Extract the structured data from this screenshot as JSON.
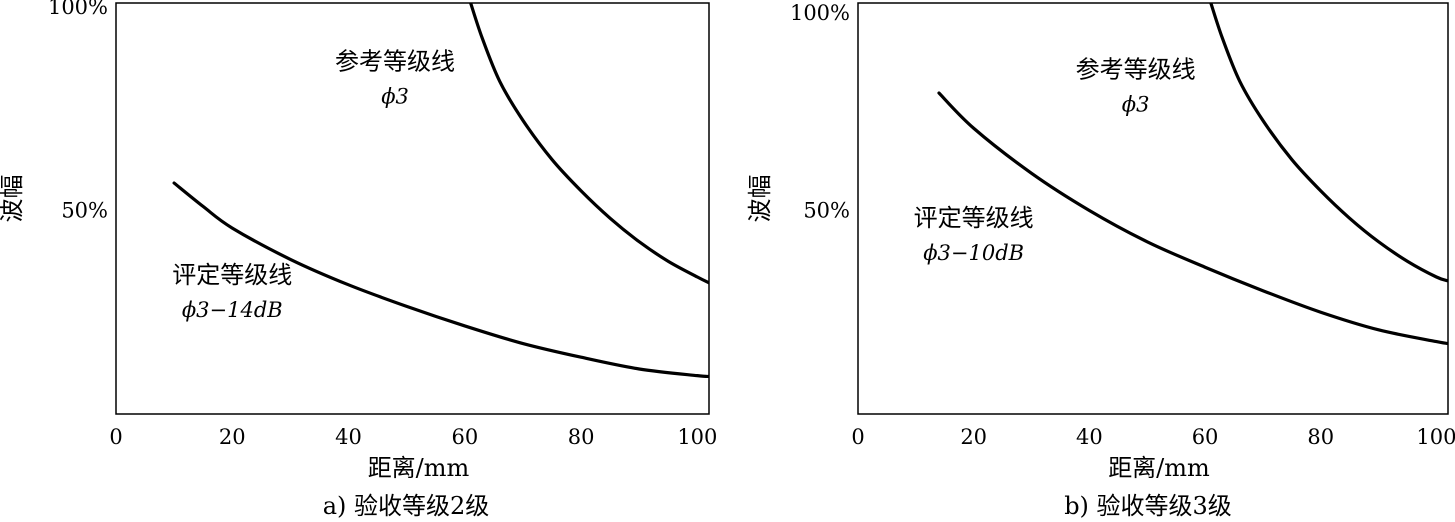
{
  "chart_data": [
    {
      "type": "line",
      "caption": "a) 验收等级2级",
      "xlabel": "距离/mm",
      "ylabel": "波幅",
      "xlim": [
        0,
        102
      ],
      "ylim": [
        0,
        105
      ],
      "x_ticks": [
        "0",
        "20",
        "40",
        "60",
        "80",
        "100"
      ],
      "x_tick_values": [
        0,
        20,
        40,
        60,
        80,
        100
      ],
      "y_ticks": [
        "50%",
        "100%"
      ],
      "y_tick_values": [
        52,
        104
      ],
      "series": [
        {
          "annotation": [
            "参考等级线",
            "ϕ3"
          ],
          "annotation_anchor": [
            48,
            88
          ],
          "points": [
            [
              61,
              105
            ],
            [
              63,
              96
            ],
            [
              66,
              85
            ],
            [
              70,
              75
            ],
            [
              75,
              65
            ],
            [
              80,
              57
            ],
            [
              85,
              50
            ],
            [
              90,
              44
            ],
            [
              95,
              39
            ],
            [
              100,
              35
            ],
            [
              102,
              33.5
            ]
          ]
        },
        {
          "annotation": [
            "评定等级线",
            "ϕ3−14dB"
          ],
          "annotation_anchor": [
            20,
            33.5
          ],
          "points": [
            [
              10,
              59
            ],
            [
              15,
              53
            ],
            [
              20,
              47.5
            ],
            [
              30,
              39.5
            ],
            [
              40,
              33
            ],
            [
              50,
              27.5
            ],
            [
              60,
              22.5
            ],
            [
              70,
              18
            ],
            [
              80,
              14.5
            ],
            [
              90,
              11.5
            ],
            [
              100,
              9.8
            ],
            [
              102,
              9.6
            ]
          ]
        }
      ]
    },
    {
      "type": "line",
      "caption": "b) 验收等级3级",
      "xlabel": "距离/mm",
      "ylabel": "波幅",
      "xlim": [
        0,
        102
      ],
      "ylim": [
        0,
        105
      ],
      "x_ticks": [
        "0",
        "20",
        "40",
        "60",
        "80",
        "100"
      ],
      "x_tick_values": [
        0,
        20,
        40,
        60,
        80,
        100
      ],
      "y_ticks": [
        "50%",
        "100%"
      ],
      "y_tick_values": [
        52,
        102.5
      ],
      "series": [
        {
          "annotation": [
            "参考等级线",
            "ϕ3"
          ],
          "annotation_anchor": [
            48,
            86
          ],
          "points": [
            [
              61,
              105
            ],
            [
              63,
              96
            ],
            [
              66,
              85
            ],
            [
              70,
              75
            ],
            [
              75,
              65
            ],
            [
              80,
              57
            ],
            [
              85,
              50
            ],
            [
              90,
              44
            ],
            [
              95,
              39
            ],
            [
              100,
              35
            ],
            [
              102,
              34
            ]
          ]
        },
        {
          "annotation": [
            "评定等级线",
            "ϕ3−10dB"
          ],
          "annotation_anchor": [
            20,
            48
          ],
          "points": [
            [
              14,
              82
            ],
            [
              20,
              73
            ],
            [
              30,
              61.5
            ],
            [
              40,
              52
            ],
            [
              50,
              44
            ],
            [
              60,
              37.5
            ],
            [
              70,
              31.5
            ],
            [
              80,
              26
            ],
            [
              90,
              21.5
            ],
            [
              100,
              18.5
            ],
            [
              102,
              18
            ]
          ]
        }
      ]
    }
  ]
}
